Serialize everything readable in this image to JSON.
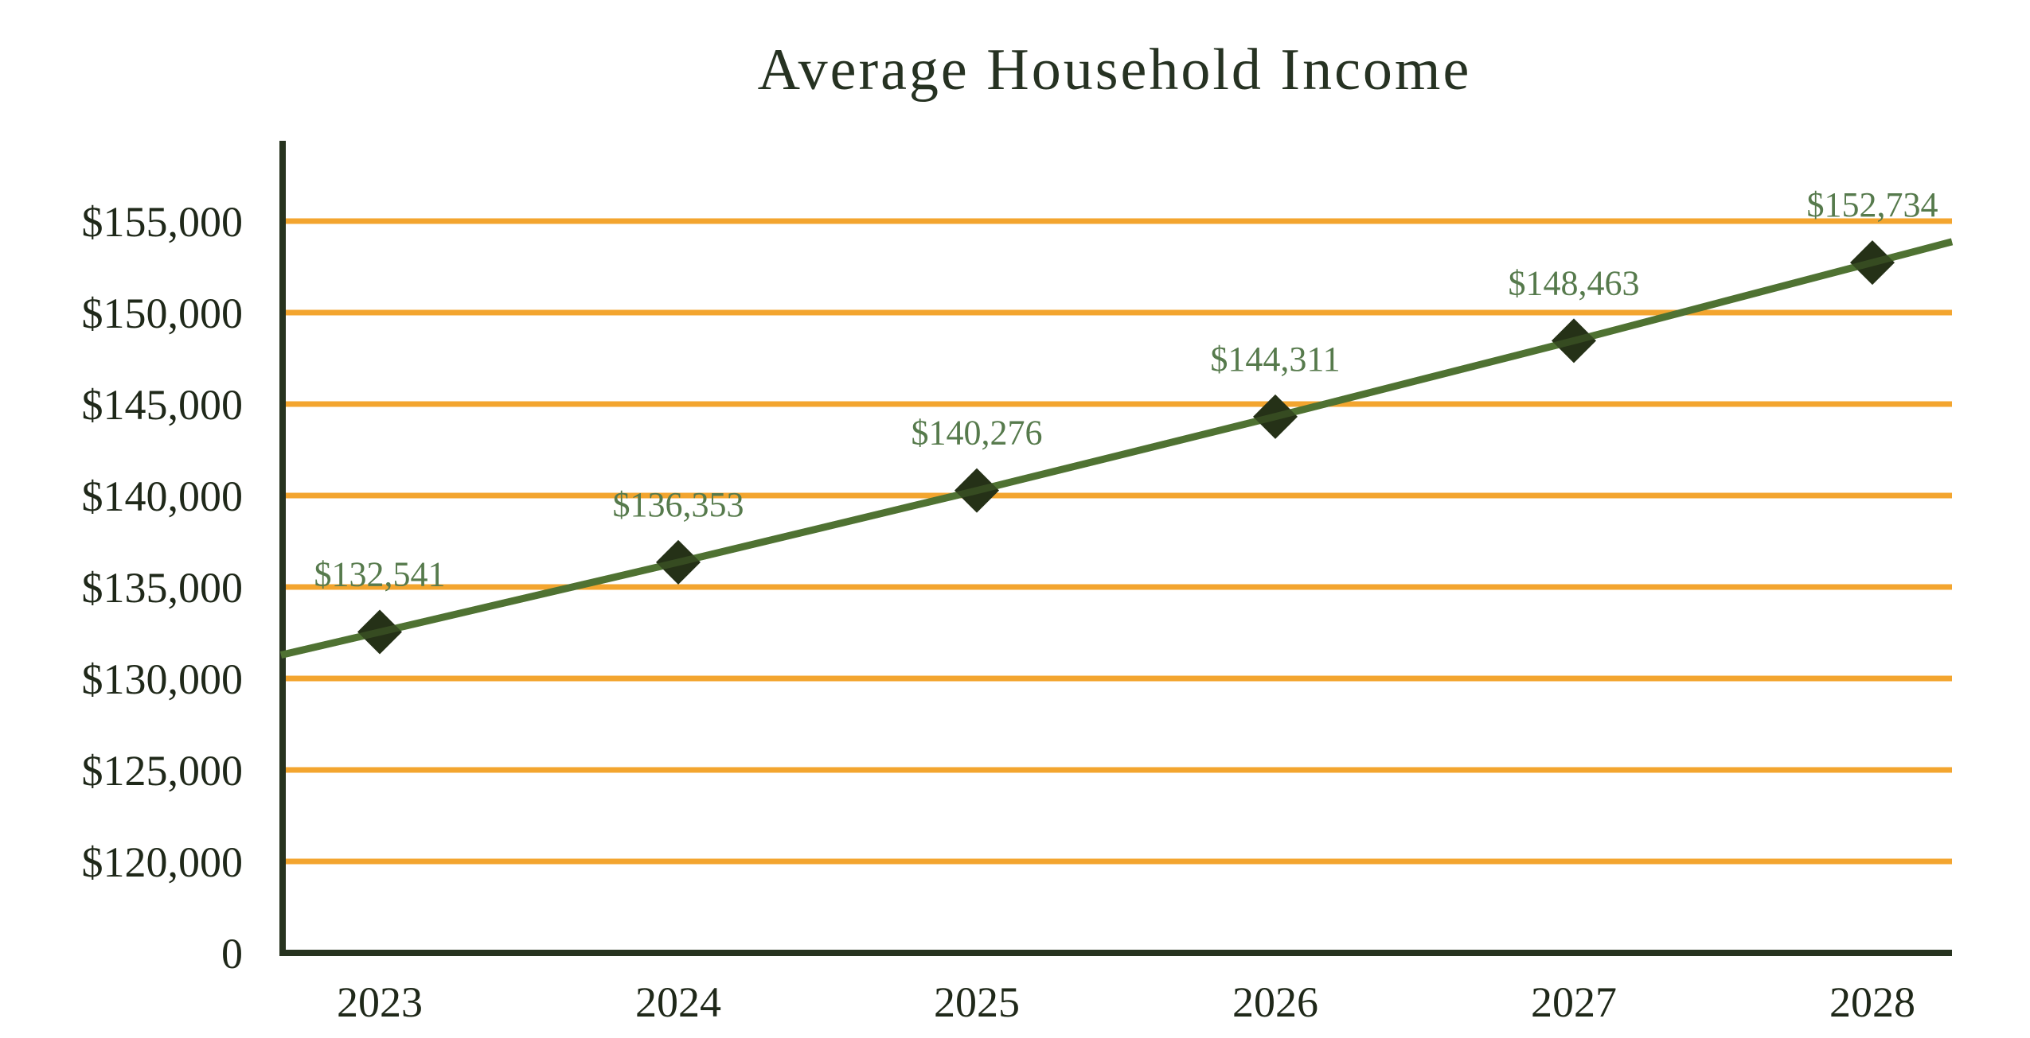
{
  "chart_data": {
    "type": "line",
    "title": "Average Household Income",
    "categories": [
      "2023",
      "2024",
      "2025",
      "2026",
      "2027",
      "2028"
    ],
    "series": [
      {
        "name": "Average Household Income",
        "values": [
          132541,
          136353,
          140276,
          144311,
          148463,
          152734
        ],
        "point_labels": [
          "$132,541",
          "$136,353",
          "$140,276",
          "$144,311",
          "$148,463",
          "$152,734"
        ]
      }
    ],
    "y_axis": {
      "tick_labels": [
        "0",
        "$120,000",
        "$125,000",
        "$130,000",
        "$135,000",
        "$140,000",
        "$145,000",
        "$150,000",
        "$155,000"
      ],
      "gridline_values": [
        120000,
        125000,
        130000,
        135000,
        140000,
        145000,
        150000,
        155000
      ],
      "axis_min_value": 115000,
      "axis_max_value": 158500,
      "step": 5000
    },
    "grid": "horizontal-only",
    "legend": "none",
    "colors": {
      "background": "#ffffff",
      "title": "#263222",
      "axis_line": "#27331f",
      "axis_tick_label": "#1f2819",
      "gridline": "#f3a52f",
      "line": "#4f7233",
      "marker": "#253117",
      "point_label": "#567a4c"
    }
  }
}
